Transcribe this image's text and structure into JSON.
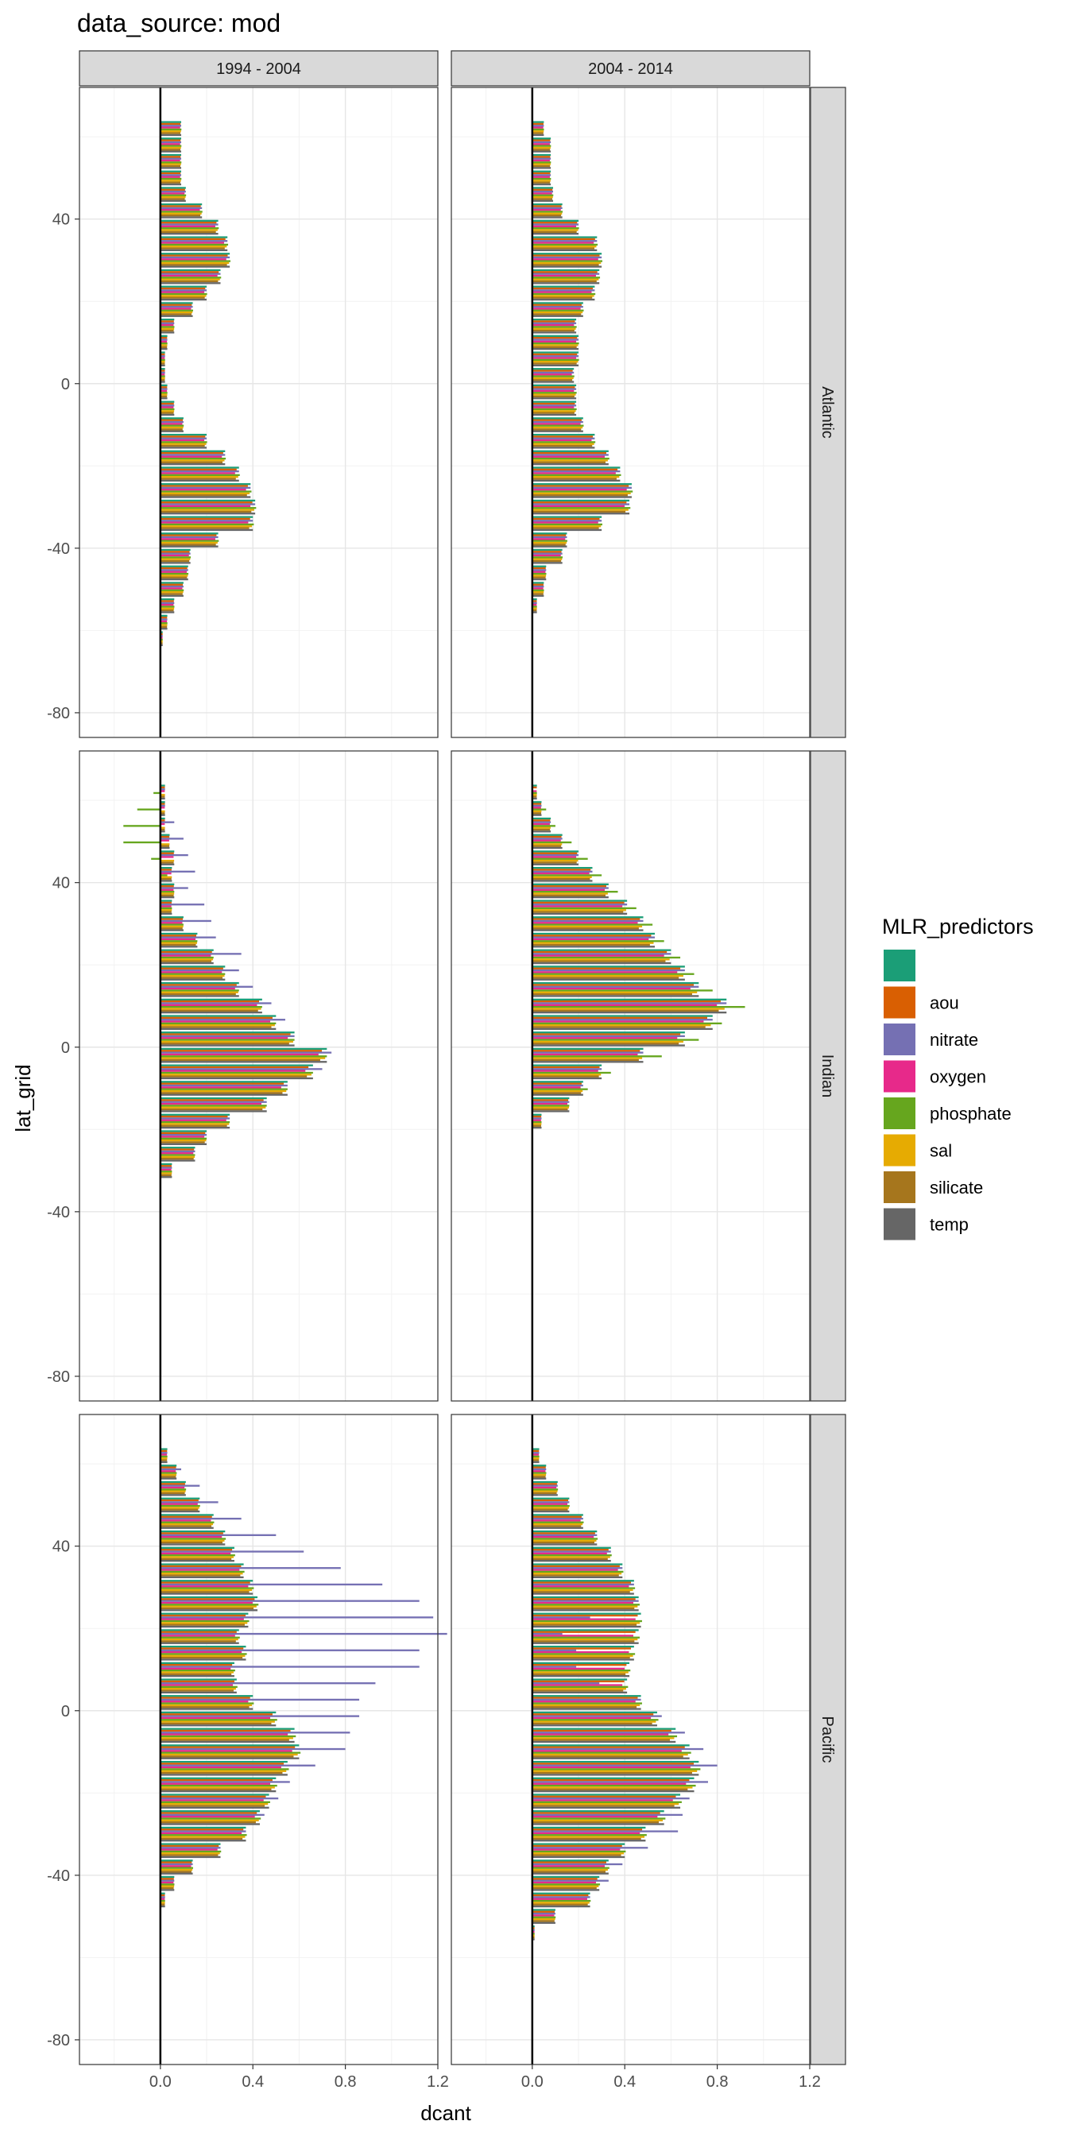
{
  "title": "data_source: mod",
  "chart_data": {
    "type": "bar",
    "orientation": "horizontal",
    "title": "data_source: mod",
    "xlabel": "dcant",
    "ylabel": "lat_grid",
    "xlim": [
      -0.35,
      1.2
    ],
    "ylim": [
      -86,
      72
    ],
    "x_ticks": [
      0.0,
      0.4,
      0.8,
      1.2
    ],
    "x_tick_labels": [
      "0.0",
      "0.4",
      "0.8",
      "1.2"
    ],
    "y_ticks": [
      -80,
      -40,
      0,
      40
    ],
    "y_tick_labels": [
      "-80",
      "-40",
      "0",
      "40"
    ],
    "grid": true,
    "legend_position": "right",
    "columns": [
      "1994 - 2004",
      "2004 - 2014"
    ],
    "rows": [
      "Atlantic",
      "Indian",
      "Pacific"
    ],
    "latitudes": [
      62,
      58,
      54,
      50,
      46,
      42,
      38,
      34,
      30,
      26,
      22,
      18,
      14,
      10,
      6,
      2,
      -2,
      -6,
      -10,
      -14,
      -18,
      -22,
      -26,
      -30,
      -34,
      -38,
      -42,
      -46,
      -50,
      -54,
      -58,
      -62,
      -66,
      -70,
      -74
    ],
    "legend": {
      "title": "MLR_predictors",
      "items": [
        {
          "label": "",
          "color": "#1b9e77"
        },
        {
          "label": "aou",
          "color": "#d95f02"
        },
        {
          "label": "nitrate",
          "color": "#7570b3"
        },
        {
          "label": "oxygen",
          "color": "#e7298a"
        },
        {
          "label": "phosphate",
          "color": "#66a61e"
        },
        {
          "label": "sal",
          "color": "#e6ab02"
        },
        {
          "label": "silicate",
          "color": "#a6761d"
        },
        {
          "label": "temp",
          "color": "#666666"
        }
      ]
    },
    "panels": [
      {
        "row": "Atlantic",
        "column": "1994 - 2004",
        "base": [
          0.09,
          0.09,
          0.09,
          0.09,
          0.11,
          0.18,
          0.25,
          0.29,
          0.3,
          0.26,
          0.2,
          0.14,
          0.06,
          0.03,
          0.02,
          0.02,
          0.03,
          0.06,
          0.1,
          0.2,
          0.28,
          0.34,
          0.39,
          0.41,
          0.4,
          0.25,
          0.13,
          0.12,
          0.1,
          0.06,
          0.03,
          0.01
        ],
        "offsets": {
          "nitrate": [
            0,
            0,
            0,
            0,
            0,
            0,
            0,
            0,
            0,
            0,
            0,
            0,
            0,
            0,
            0,
            0,
            0,
            0,
            0,
            0,
            0,
            0,
            0,
            0,
            0,
            0,
            0,
            0,
            0,
            0,
            0,
            0
          ]
        }
      },
      {
        "row": "Atlantic",
        "column": "2004 - 2014",
        "base": [
          0.05,
          0.08,
          0.08,
          0.08,
          0.09,
          0.13,
          0.2,
          0.28,
          0.3,
          0.29,
          0.27,
          0.22,
          0.19,
          0.2,
          0.2,
          0.18,
          0.19,
          0.19,
          0.22,
          0.27,
          0.33,
          0.38,
          0.43,
          0.42,
          0.3,
          0.15,
          0.13,
          0.06,
          0.05,
          0.02
        ],
        "offsets": {
          "nitrate": [
            0,
            0,
            0,
            0,
            0,
            0,
            0,
            0,
            0,
            0,
            0,
            0,
            0,
            0,
            0,
            0,
            0,
            0,
            0,
            0,
            0,
            0,
            0,
            0,
            0,
            0,
            0,
            0,
            0,
            0
          ]
        }
      },
      {
        "row": "Indian",
        "column": "1994 - 2004",
        "base": [
          0.02,
          0.02,
          0.02,
          0.04,
          0.06,
          0.05,
          0.06,
          0.05,
          0.1,
          0.16,
          0.23,
          0.28,
          0.34,
          0.44,
          0.5,
          0.58,
          0.72,
          0.66,
          0.55,
          0.46,
          0.3,
          0.2,
          0.15,
          0.05
        ],
        "offsets": {
          "nitrate": [
            0,
            0,
            0.04,
            0.06,
            0.06,
            0.1,
            0.06,
            0.14,
            0.12,
            0.08,
            0.12,
            0.06,
            0.06,
            0.04,
            0.04,
            0,
            0.02,
            0.04,
            0,
            0,
            0,
            0,
            0,
            0
          ],
          "phosphate": [
            -0.05,
            -0.12,
            -0.18,
            -0.2,
            -0.1,
            -0.02,
            0,
            0,
            0,
            0,
            0,
            0,
            0,
            0,
            0,
            0,
            0,
            0,
            0,
            0,
            0,
            0,
            0,
            0
          ]
        }
      },
      {
        "row": "Indian",
        "column": "2004 - 2014",
        "base": [
          0.02,
          0.04,
          0.08,
          0.13,
          0.2,
          0.26,
          0.33,
          0.41,
          0.48,
          0.53,
          0.6,
          0.66,
          0.72,
          0.84,
          0.78,
          0.66,
          0.48,
          0.3,
          0.22,
          0.16,
          0.04
        ],
        "offsets": {
          "phosphate": [
            0,
            0.02,
            0.02,
            0.04,
            0.04,
            0.04,
            0.04,
            0.04,
            0.04,
            0.04,
            0.04,
            0.04,
            0.06,
            0.08,
            0.04,
            0.06,
            0.08,
            0.04,
            0.02,
            0,
            0
          ],
          "nitrate": [
            -0.02,
            0,
            0,
            0,
            0,
            0,
            0,
            0,
            0,
            0,
            0,
            0,
            0,
            0,
            0,
            0,
            0,
            0,
            0,
            0,
            0
          ]
        }
      },
      {
        "row": "Pacific",
        "column": "1994 - 2004",
        "base": [
          0.03,
          0.07,
          0.11,
          0.17,
          0.23,
          0.28,
          0.32,
          0.36,
          0.4,
          0.42,
          0.38,
          0.34,
          0.37,
          0.32,
          0.33,
          0.4,
          0.5,
          0.58,
          0.6,
          0.55,
          0.5,
          0.47,
          0.43,
          0.37,
          0.26,
          0.14,
          0.06,
          0.02
        ],
        "offsets": {
          "nitrate": [
            0,
            0.02,
            0.06,
            0.08,
            0.12,
            0.22,
            0.3,
            0.42,
            0.56,
            0.7,
            0.8,
            0.9,
            0.75,
            0.8,
            0.6,
            0.46,
            0.36,
            0.24,
            0.2,
            0.12,
            0.06,
            0.04,
            0.02,
            0,
            0,
            0,
            0,
            0
          ]
        }
      },
      {
        "row": "Pacific",
        "column": "2004 - 2014",
        "base": [
          0.03,
          0.06,
          0.11,
          0.16,
          0.22,
          0.28,
          0.34,
          0.39,
          0.44,
          0.46,
          0.47,
          0.46,
          0.44,
          0.42,
          0.41,
          0.47,
          0.54,
          0.62,
          0.68,
          0.72,
          0.7,
          0.64,
          0.57,
          0.49,
          0.4,
          0.33,
          0.29,
          0.25,
          0.1,
          0.01
        ],
        "offsets": {
          "nitrate": [
            0,
            0,
            0,
            0,
            0,
            0,
            0,
            0,
            0,
            0,
            -0.22,
            -0.33,
            -0.25,
            -0.23,
            -0.12,
            0,
            0.02,
            0.04,
            0.06,
            0.08,
            0.06,
            0.04,
            0.08,
            0.14,
            0.1,
            0.06,
            0.04,
            0,
            0,
            0
          ]
        }
      }
    ]
  }
}
